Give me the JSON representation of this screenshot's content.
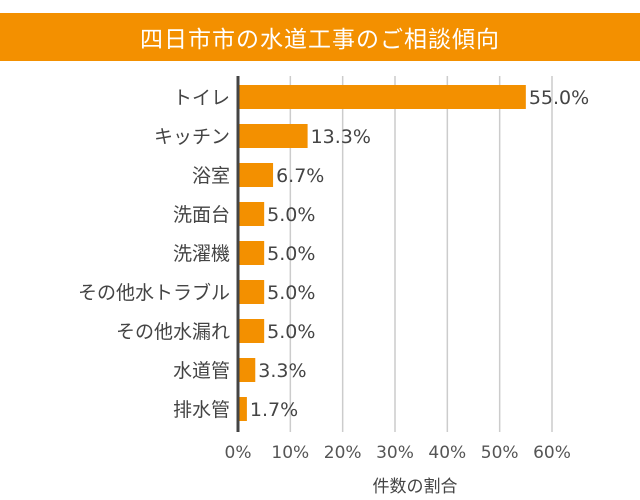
{
  "chart_data": {
    "type": "bar",
    "orientation": "horizontal",
    "title": "四日市市の水道工事のご相談傾向",
    "xlabel": "件数の割合",
    "ylabel": "",
    "categories": [
      "トイレ",
      "キッチン",
      "浴室",
      "洗面台",
      "洗濯機",
      "その他水トラブル",
      "その他水漏れ",
      "水道管",
      "排水管"
    ],
    "values": [
      55.0,
      13.3,
      6.7,
      5.0,
      5.0,
      5.0,
      5.0,
      3.3,
      1.7
    ],
    "data_labels": [
      "55.0%",
      "13.3%",
      "6.7%",
      "5.0%",
      "5.0%",
      "5.0%",
      "5.0%",
      "3.3%",
      "1.7%"
    ],
    "xlim": [
      0,
      60
    ],
    "xticks": [
      "0%",
      "10%",
      "20%",
      "30%",
      "40%",
      "50%",
      "60%"
    ],
    "grid": "vertical",
    "legend": "none",
    "colors": {
      "bar": "#F39000",
      "title_bg": "#F39000",
      "grid": "#CCCCCC",
      "axis": "#444444"
    }
  }
}
